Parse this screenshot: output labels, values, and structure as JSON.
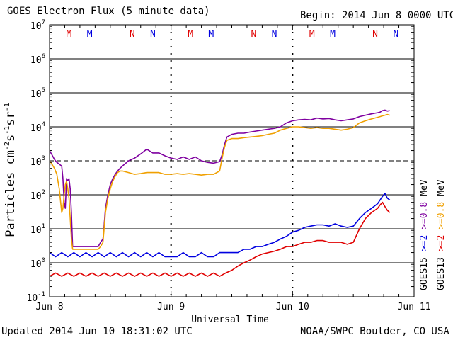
{
  "chart_data": {
    "type": "line",
    "title": "GOES Electron Flux (5 minute data)",
    "begin_label": "Begin: 2014 Jun 8 0000 UTC",
    "xlabel": "Universal Time",
    "ylabel_main": "Particles cm",
    "ylabel_sup1": "-2",
    "ylabel_mid1": "s",
    "ylabel_sup2": "-1",
    "ylabel_mid2": "sr",
    "ylabel_sup3": "-1",
    "xlim": [
      0,
      3
    ],
    "ylim": [
      0.1,
      10000000
    ],
    "y_scale": "log",
    "x_tick_labels": [
      "Jun 8",
      "Jun 9",
      "Jun 10",
      "Jun 11"
    ],
    "y_tick_labels": [
      {
        "base": "10",
        "exp": "-1"
      },
      {
        "base": "10",
        "exp": "0"
      },
      {
        "base": "10",
        "exp": "1"
      },
      {
        "base": "10",
        "exp": "2"
      },
      {
        "base": "10",
        "exp": "3"
      },
      {
        "base": "10",
        "exp": "4"
      },
      {
        "base": "10",
        "exp": "5"
      },
      {
        "base": "10",
        "exp": "6"
      },
      {
        "base": "10",
        "exp": "7"
      }
    ],
    "dashed_level": 1000,
    "eclipse_markers": [
      {
        "day": 0.16,
        "letter": "M",
        "color": "#e00000"
      },
      {
        "day": 0.33,
        "letter": "M",
        "color": "#0000e0"
      },
      {
        "day": 0.68,
        "letter": "N",
        "color": "#e00000"
      },
      {
        "day": 0.85,
        "letter": "N",
        "color": "#0000e0"
      },
      {
        "day": 1.16,
        "letter": "M",
        "color": "#e00000"
      },
      {
        "day": 1.33,
        "letter": "M",
        "color": "#0000e0"
      },
      {
        "day": 1.68,
        "letter": "N",
        "color": "#e00000"
      },
      {
        "day": 1.85,
        "letter": "N",
        "color": "#0000e0"
      },
      {
        "day": 2.16,
        "letter": "M",
        "color": "#e00000"
      },
      {
        "day": 2.33,
        "letter": "M",
        "color": "#0000e0"
      },
      {
        "day": 2.68,
        "letter": "N",
        "color": "#e00000"
      },
      {
        "day": 2.85,
        "letter": "N",
        "color": "#0000e0"
      }
    ],
    "right_legend": [
      {
        "text": "GOES15",
        "color": "#000000"
      },
      {
        "text": ">=2",
        "color": "#0000e0"
      },
      {
        "text": ">=0.8",
        "color": "#7f00a0"
      },
      {
        "text": "MeV",
        "color": "#000000"
      },
      {
        "text": "GOES13",
        "color": "#000000"
      },
      {
        "text": ">=2",
        "color": "#e00000"
      },
      {
        "text": ">=0.8",
        "color": "#f0a000"
      },
      {
        "text": "MeV",
        "color": "#000000"
      }
    ],
    "series": [
      {
        "name": "GOES15 >=0.8 MeV",
        "color": "#7f00a0",
        "x": [
          0.0,
          0.02,
          0.04,
          0.06,
          0.08,
          0.1,
          0.11,
          0.12,
          0.13,
          0.14,
          0.15,
          0.16,
          0.17,
          0.18,
          0.19,
          0.2,
          0.22,
          0.24,
          0.26,
          0.28,
          0.3,
          0.32,
          0.34,
          0.36,
          0.38,
          0.4,
          0.42,
          0.44,
          0.46,
          0.48,
          0.5,
          0.52,
          0.54,
          0.56,
          0.58,
          0.6,
          0.65,
          0.7,
          0.75,
          0.8,
          0.85,
          0.9,
          0.95,
          1.0,
          1.05,
          1.1,
          1.15,
          1.2,
          1.25,
          1.3,
          1.35,
          1.4,
          1.42,
          1.44,
          1.46,
          1.5,
          1.55,
          1.6,
          1.65,
          1.7,
          1.75,
          1.8,
          1.85,
          1.9,
          1.95,
          2.0,
          2.05,
          2.1,
          2.15,
          2.2,
          2.25,
          2.3,
          2.35,
          2.4,
          2.45,
          2.5,
          2.55,
          2.6,
          2.65,
          2.7,
          2.72,
          2.74,
          2.76,
          2.78,
          2.8
        ],
        "y": [
          2000,
          1500,
          1100,
          900,
          800,
          700,
          300,
          60,
          40,
          300,
          260,
          300,
          150,
          30,
          3,
          3,
          3,
          3,
          3,
          3,
          3,
          3,
          3,
          3,
          3,
          3,
          4,
          5,
          40,
          100,
          200,
          300,
          400,
          500,
          600,
          700,
          1000,
          1200,
          1600,
          2200,
          1700,
          1700,
          1400,
          1200,
          1100,
          1300,
          1100,
          1300,
          1000,
          900,
          850,
          950,
          1500,
          3000,
          5000,
          6000,
          6500,
          6500,
          7000,
          7500,
          8000,
          8500,
          9000,
          10000,
          13000,
          15000,
          16000,
          16500,
          16000,
          18000,
          17000,
          17500,
          16000,
          15000,
          16000,
          17000,
          20000,
          22000,
          24000,
          26000,
          27000,
          30000,
          31000,
          29000,
          30000
        ]
      },
      {
        "name": "GOES13 >=0.8 MeV",
        "color": "#f0a000",
        "x": [
          0.0,
          0.02,
          0.04,
          0.06,
          0.08,
          0.1,
          0.11,
          0.12,
          0.13,
          0.14,
          0.15,
          0.16,
          0.17,
          0.18,
          0.19,
          0.2,
          0.22,
          0.24,
          0.26,
          0.28,
          0.3,
          0.32,
          0.34,
          0.36,
          0.38,
          0.4,
          0.42,
          0.44,
          0.46,
          0.48,
          0.5,
          0.52,
          0.54,
          0.56,
          0.58,
          0.6,
          0.65,
          0.7,
          0.75,
          0.8,
          0.85,
          0.9,
          0.95,
          1.0,
          1.05,
          1.1,
          1.15,
          1.2,
          1.25,
          1.3,
          1.35,
          1.4,
          1.42,
          1.44,
          1.46,
          1.5,
          1.55,
          1.6,
          1.65,
          1.7,
          1.75,
          1.8,
          1.85,
          1.9,
          1.95,
          2.0,
          2.05,
          2.1,
          2.15,
          2.2,
          2.25,
          2.3,
          2.35,
          2.4,
          2.45,
          2.5,
          2.55,
          2.6,
          2.65,
          2.7,
          2.72,
          2.74,
          2.76,
          2.78,
          2.8
        ],
        "y": [
          1000,
          800,
          600,
          400,
          150,
          30,
          40,
          100,
          200,
          250,
          150,
          80,
          20,
          5,
          2.5,
          2.5,
          2.5,
          2.5,
          2.5,
          2.5,
          2.5,
          2.5,
          2.5,
          2.5,
          2.5,
          2.5,
          3,
          4,
          30,
          80,
          150,
          250,
          350,
          450,
          500,
          500,
          450,
          400,
          420,
          450,
          450,
          450,
          400,
          400,
          420,
          400,
          420,
          400,
          380,
          400,
          400,
          500,
          1200,
          2500,
          4000,
          4500,
          4500,
          4800,
          5000,
          5200,
          5500,
          6000,
          6500,
          8000,
          9000,
          10000,
          10000,
          9500,
          9000,
          9500,
          9000,
          9000,
          8500,
          8000,
          8500,
          9500,
          13000,
          15000,
          17000,
          19000,
          20000,
          21000,
          22000,
          23000,
          22000
        ]
      },
      {
        "name": "GOES15 >=2 MeV",
        "color": "#0000e0",
        "x": [
          0.0,
          0.05,
          0.1,
          0.15,
          0.2,
          0.25,
          0.3,
          0.35,
          0.4,
          0.45,
          0.5,
          0.55,
          0.6,
          0.65,
          0.7,
          0.75,
          0.8,
          0.85,
          0.9,
          0.95,
          1.0,
          1.05,
          1.1,
          1.15,
          1.2,
          1.25,
          1.3,
          1.35,
          1.4,
          1.45,
          1.5,
          1.55,
          1.6,
          1.65,
          1.7,
          1.75,
          1.8,
          1.85,
          1.9,
          1.95,
          2.0,
          2.05,
          2.1,
          2.15,
          2.2,
          2.25,
          2.3,
          2.35,
          2.4,
          2.45,
          2.5,
          2.55,
          2.6,
          2.65,
          2.7,
          2.72,
          2.74,
          2.76,
          2.78,
          2.8
        ],
        "y": [
          2,
          1.5,
          2,
          1.5,
          2,
          1.5,
          2,
          1.5,
          2,
          1.5,
          2,
          1.5,
          2,
          1.5,
          2,
          1.5,
          2,
          1.5,
          2,
          1.5,
          1.5,
          1.5,
          2,
          1.5,
          1.5,
          2,
          1.5,
          1.5,
          2,
          2,
          2,
          2,
          2.5,
          2.5,
          3,
          3,
          3.5,
          4,
          5,
          6,
          8,
          9,
          11,
          12,
          13,
          13,
          12,
          14,
          12,
          11,
          12,
          20,
          30,
          40,
          55,
          70,
          90,
          110,
          80,
          70
        ]
      },
      {
        "name": "GOES13 >=2 MeV",
        "color": "#e00000",
        "x": [
          0.0,
          0.05,
          0.1,
          0.15,
          0.2,
          0.25,
          0.3,
          0.35,
          0.4,
          0.45,
          0.5,
          0.55,
          0.6,
          0.65,
          0.7,
          0.75,
          0.8,
          0.85,
          0.9,
          0.95,
          1.0,
          1.05,
          1.1,
          1.15,
          1.2,
          1.25,
          1.3,
          1.35,
          1.4,
          1.45,
          1.5,
          1.55,
          1.6,
          1.65,
          1.7,
          1.75,
          1.8,
          1.85,
          1.9,
          1.95,
          2.0,
          2.05,
          2.1,
          2.15,
          2.2,
          2.25,
          2.3,
          2.35,
          2.4,
          2.45,
          2.5,
          2.55,
          2.6,
          2.65,
          2.7,
          2.72,
          2.74,
          2.76,
          2.78,
          2.8
        ],
        "y": [
          0.4,
          0.5,
          0.4,
          0.5,
          0.4,
          0.5,
          0.4,
          0.5,
          0.4,
          0.5,
          0.4,
          0.5,
          0.4,
          0.5,
          0.4,
          0.5,
          0.4,
          0.5,
          0.4,
          0.5,
          0.4,
          0.5,
          0.4,
          0.5,
          0.4,
          0.5,
          0.4,
          0.5,
          0.4,
          0.5,
          0.6,
          0.8,
          1,
          1.2,
          1.5,
          1.8,
          2,
          2.2,
          2.5,
          3,
          3,
          3.5,
          4,
          4,
          4.5,
          4.5,
          4,
          4,
          4,
          3.5,
          4,
          10,
          20,
          30,
          40,
          50,
          60,
          45,
          35,
          30
        ]
      }
    ]
  },
  "footer": {
    "updated": "Updated 2014 Jun 10 18:31:02 UTC",
    "credit": "NOAA/SWPC Boulder, CO USA"
  }
}
